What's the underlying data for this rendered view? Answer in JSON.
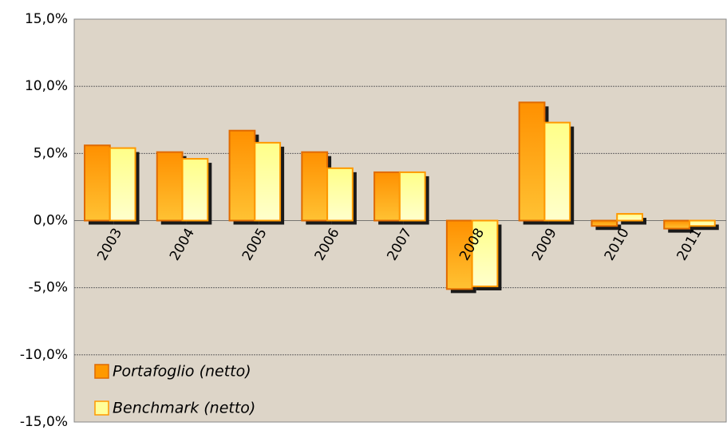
{
  "chart_data": {
    "type": "bar",
    "categories": [
      "2003",
      "2004",
      "2005",
      "2006",
      "2007",
      "2008",
      "2009",
      "2010",
      "2011"
    ],
    "series": [
      {
        "name": "Portafoglio (netto)",
        "color": "#ff9900",
        "values": [
          5.6,
          5.1,
          6.7,
          5.1,
          3.6,
          -5.1,
          8.8,
          -0.4,
          -0.6
        ]
      },
      {
        "name": "Benchmark (netto)",
        "color": "#ffff99",
        "values": [
          5.4,
          4.6,
          5.8,
          3.9,
          3.6,
          -4.9,
          7.3,
          0.5,
          -0.4
        ]
      }
    ],
    "ylim": [
      -15,
      15
    ],
    "yticks": [
      {
        "value": -15,
        "label": "-15,0%"
      },
      {
        "value": -10,
        "label": "-10,0%"
      },
      {
        "value": -5,
        "label": "-5,0%"
      },
      {
        "value": 0,
        "label": "0,0%"
      },
      {
        "value": 5,
        "label": "5,0%"
      },
      {
        "value": 10,
        "label": "10,0%"
      },
      {
        "value": 15,
        "label": "15,0%"
      }
    ],
    "grid": true,
    "legend": "lower left"
  }
}
